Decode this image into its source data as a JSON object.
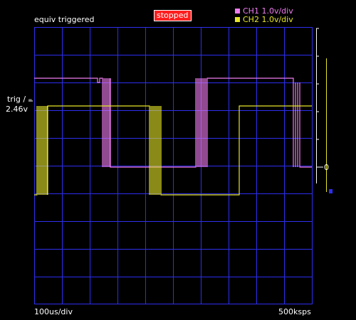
{
  "header": {
    "trigger_mode": "equiv triggered",
    "status": "stopped"
  },
  "legend": [
    {
      "label": "CH1 1.0v/div",
      "color": "#f07cf0"
    },
    {
      "label": "CH2 1.0v/div",
      "color": "#e6e629"
    }
  ],
  "left_labels": {
    "trig": "trig / –",
    "trig_level": "2.46v"
  },
  "footer": {
    "timebase": "100us/div",
    "sample_rate": "500ksps"
  },
  "marker_text": "0",
  "colors": {
    "background": "#000000",
    "grid": "#2e2ef0",
    "ch1": "#f07cf0",
    "ch2": "#e6e629",
    "status_bg": "#ff1e1e"
  }
}
